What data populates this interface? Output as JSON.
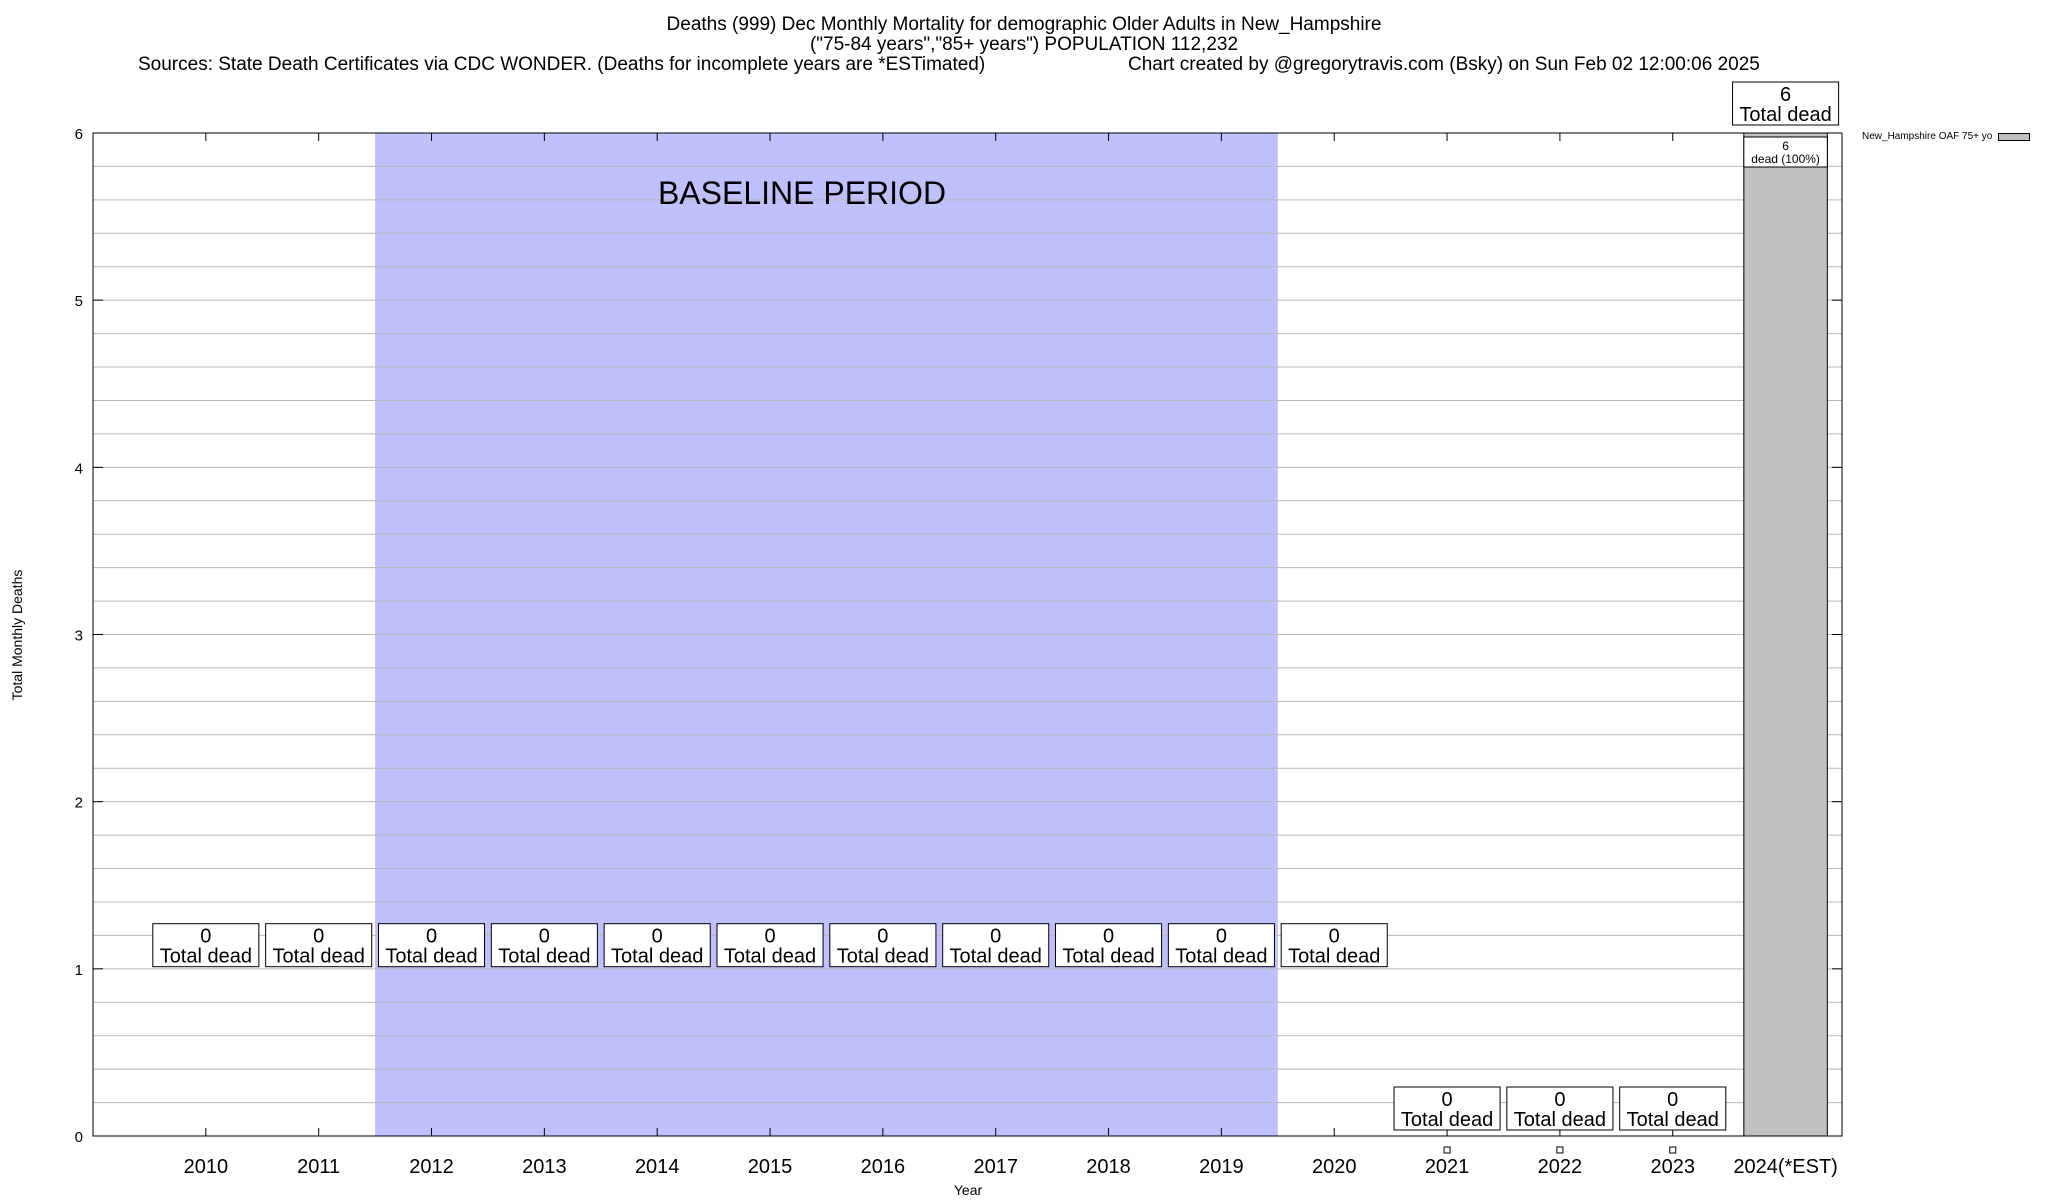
{
  "header": {
    "title_line1": "Deaths (999) Dec Monthly Mortality for demographic Older Adults in New_Hampshire",
    "title_line2": "(\"75-84 years\",\"85+ years\") POPULATION 112,232",
    "sources": "Sources: State Death Certificates via CDC WONDER. (Deaths for incomplete years are *ESTimated)",
    "credit": "Chart created by @gregorytravis.com (Bsky) on Sun Feb 02 12:00:06 2025"
  },
  "chart_data": {
    "type": "bar",
    "title": "Deaths (999) Dec Monthly Mortality for demographic Older Adults in New_Hampshire",
    "subtitle": "(\"75-84 years\",\"85+ years\") POPULATION 112,232",
    "xlabel": "Year",
    "ylabel": "Total Monthly Deaths",
    "ylim": [
      0,
      6
    ],
    "yticks": [
      "0",
      "1",
      "2",
      "3",
      "4",
      "5",
      "6"
    ],
    "grid": "horizontal",
    "categories": [
      "2010",
      "2011",
      "2012",
      "2013",
      "2014",
      "2015",
      "2016",
      "2017",
      "2018",
      "2019",
      "2020",
      "2021",
      "2022",
      "2023",
      "2024(*EST)"
    ],
    "series": [
      {
        "name": "New_Hampshire OAF 75+ yo",
        "values": [
          null,
          null,
          null,
          null,
          null,
          null,
          null,
          null,
          null,
          null,
          null,
          0,
          0,
          0,
          6
        ],
        "color": "#c0c0c0"
      }
    ],
    "total_labels": [
      "0",
      "0",
      "0",
      "0",
      "0",
      "0",
      "0",
      "0",
      "0",
      "0",
      "0",
      "0",
      "0",
      "0",
      "6"
    ],
    "total_suffix": "Total dead",
    "segment_label": {
      "value": "6",
      "text": "dead (100%)"
    },
    "baseline": {
      "label": "BASELINE PERIOD",
      "from": "2012",
      "to": "2019",
      "color": "#c0c0ff"
    },
    "legend_position": "top-right"
  }
}
